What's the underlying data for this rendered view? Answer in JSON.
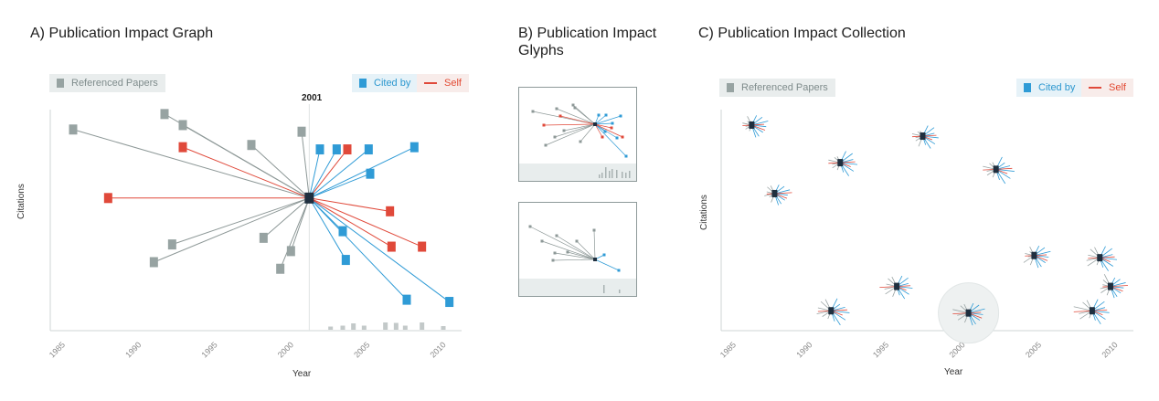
{
  "colors": {
    "referenced": "#97a3a2",
    "cited_by": "#2f9bd6",
    "self": "#e0493a",
    "focal": "#1f2f3f",
    "axis": "#cfd6d6",
    "footer": "#e8eded"
  },
  "panel_a": {
    "title": "A) Publication Impact Graph",
    "legend_referenced": "Referenced Papers",
    "legend_cited": "Cited by",
    "legend_self": "Self",
    "focal_year_label": "2001",
    "xlabel": "Year",
    "ylabel": "Citations",
    "ticks": [
      "1985",
      "1990",
      "1995",
      "2000",
      "2005",
      "2010"
    ]
  },
  "panel_b": {
    "title_line1": "B) Publication Impact",
    "title_line2": "Glyphs"
  },
  "panel_c": {
    "title": "C) Publication Impact Collection",
    "legend_referenced": "Referenced Papers",
    "legend_cited": "Cited by",
    "legend_self": "Self",
    "xlabel": "Year",
    "ylabel": "Citations",
    "ticks": [
      "1985",
      "1990",
      "1995",
      "2000",
      "2005",
      "2010"
    ]
  },
  "chart_data": {
    "type": "scatter",
    "x_range": [
      1984,
      2011
    ],
    "focal": {
      "year": 2001,
      "citations": 0.6
    },
    "referenced": [
      {
        "year": 1985.5,
        "citations": 0.91
      },
      {
        "year": 1991.5,
        "citations": 0.98
      },
      {
        "year": 1992.7,
        "citations": 0.93
      },
      {
        "year": 1997.2,
        "citations": 0.84
      },
      {
        "year": 2000.5,
        "citations": 0.9
      },
      {
        "year": 1992.0,
        "citations": 0.39
      },
      {
        "year": 1990.8,
        "citations": 0.31
      },
      {
        "year": 1998.0,
        "citations": 0.42
      },
      {
        "year": 1999.8,
        "citations": 0.36
      },
      {
        "year": 1999.1,
        "citations": 0.28
      }
    ],
    "cited_by": [
      {
        "year": 2001.7,
        "citations": 0.82
      },
      {
        "year": 2002.8,
        "citations": 0.82
      },
      {
        "year": 2004.9,
        "citations": 0.82
      },
      {
        "year": 2007.9,
        "citations": 0.83
      },
      {
        "year": 2005.0,
        "citations": 0.71
      },
      {
        "year": 2003.2,
        "citations": 0.45
      },
      {
        "year": 2003.4,
        "citations": 0.32
      },
      {
        "year": 2007.4,
        "citations": 0.14
      },
      {
        "year": 2010.2,
        "citations": 0.13
      }
    ],
    "self": [
      {
        "year": 1987.8,
        "citations": 0.6
      },
      {
        "year": 1992.7,
        "citations": 0.83
      },
      {
        "year": 2003.5,
        "citations": 0.82
      },
      {
        "year": 2006.3,
        "citations": 0.54
      },
      {
        "year": 2006.4,
        "citations": 0.38
      },
      {
        "year": 2008.4,
        "citations": 0.38
      }
    ],
    "citation_bars": [
      {
        "year": 2002.4,
        "value": 0.35
      },
      {
        "year": 2003.2,
        "value": 0.45
      },
      {
        "year": 2003.9,
        "value": 0.7
      },
      {
        "year": 2004.6,
        "value": 0.45
      },
      {
        "year": 2006.0,
        "value": 0.8
      },
      {
        "year": 2006.7,
        "value": 0.75
      },
      {
        "year": 2007.3,
        "value": 0.45
      },
      {
        "year": 2008.4,
        "value": 0.8
      },
      {
        "year": 2009.8,
        "value": 0.4
      }
    ],
    "collection": [
      {
        "year": 1986.0,
        "citations": 0.93,
        "highlight": false
      },
      {
        "year": 1991.8,
        "citations": 0.76,
        "highlight": false
      },
      {
        "year": 1987.5,
        "citations": 0.62,
        "highlight": false
      },
      {
        "year": 1997.2,
        "citations": 0.88,
        "highlight": false
      },
      {
        "year": 2002.0,
        "citations": 0.73,
        "highlight": false
      },
      {
        "year": 2004.5,
        "citations": 0.34,
        "highlight": false
      },
      {
        "year": 2008.8,
        "citations": 0.33,
        "highlight": false
      },
      {
        "year": 2009.5,
        "citations": 0.2,
        "highlight": false
      },
      {
        "year": 1995.5,
        "citations": 0.2,
        "highlight": false
      },
      {
        "year": 1991.2,
        "citations": 0.09,
        "highlight": false
      },
      {
        "year": 2000.2,
        "citations": 0.08,
        "highlight": true
      },
      {
        "year": 2008.3,
        "citations": 0.09,
        "highlight": false
      }
    ]
  }
}
